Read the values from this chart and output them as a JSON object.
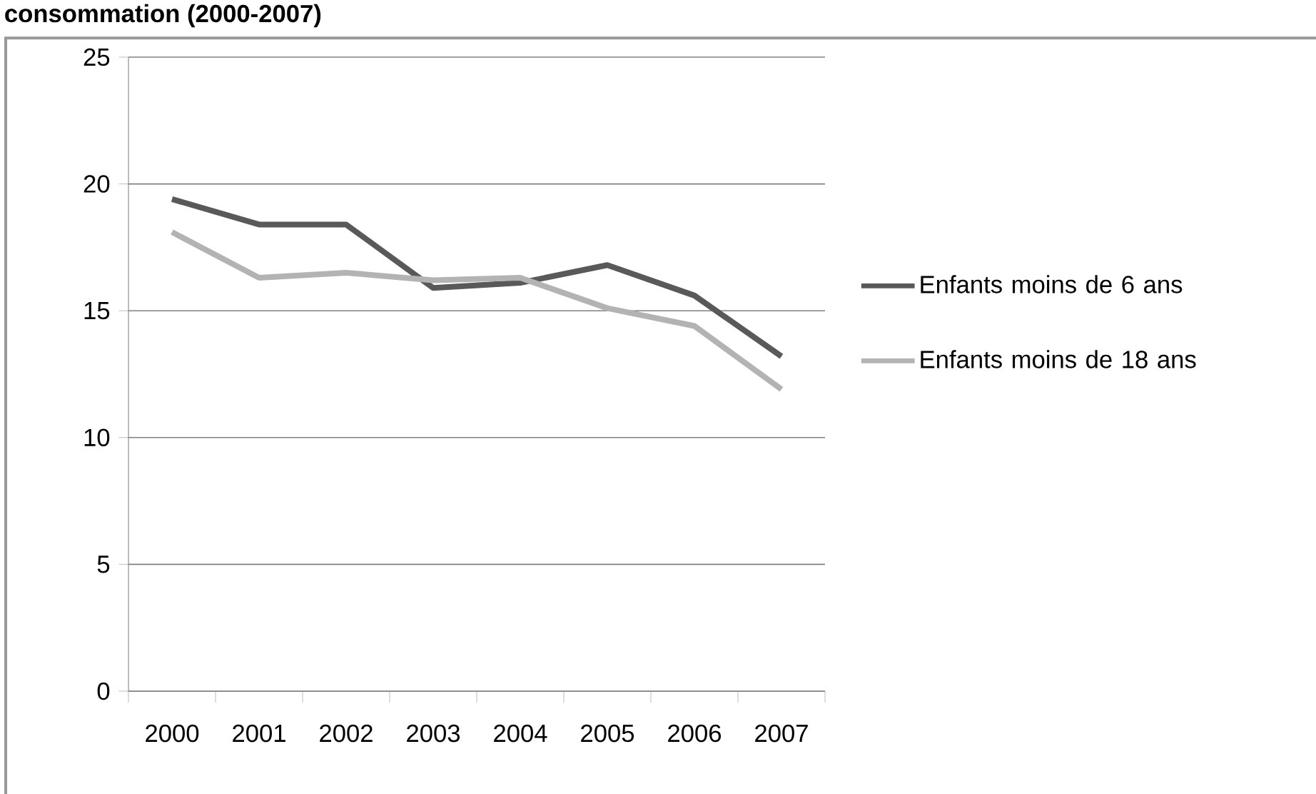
{
  "chart_data": {
    "type": "line",
    "title": "consommation (2000-2007)",
    "categories": [
      "2000",
      "2001",
      "2002",
      "2003",
      "2004",
      "2005",
      "2006",
      "2007"
    ],
    "series": [
      {
        "name": "Enfants moins de 6 ans",
        "color": "#595959",
        "values": [
          19.4,
          18.4,
          18.4,
          15.9,
          16.1,
          16.8,
          15.6,
          13.2
        ]
      },
      {
        "name": "Enfants moins de 18 ans",
        "color": "#b3b3b3",
        "values": [
          18.1,
          16.3,
          16.5,
          16.2,
          16.3,
          15.1,
          14.4,
          11.9
        ]
      }
    ],
    "ylim": [
      0,
      25
    ],
    "yticks": [
      0,
      5,
      10,
      15,
      20,
      25
    ],
    "grid": "y",
    "legend": "right",
    "marker": "none",
    "line_style": "solid"
  }
}
